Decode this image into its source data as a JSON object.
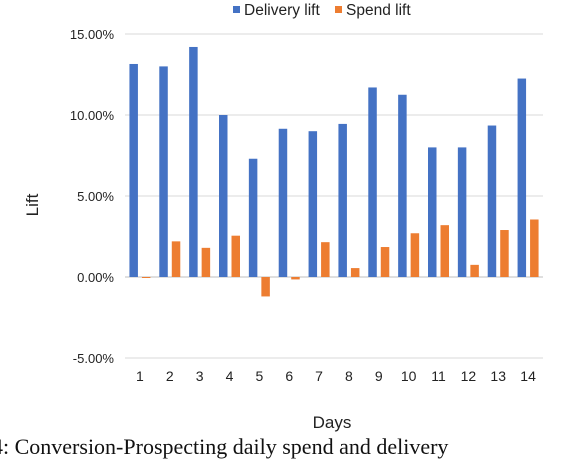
{
  "chart_data": {
    "type": "bar",
    "categories": [
      "1",
      "2",
      "3",
      "4",
      "5",
      "6",
      "7",
      "8",
      "9",
      "10",
      "11",
      "12",
      "13",
      "14"
    ],
    "series": [
      {
        "name": "Delivery lift",
        "color": "#4472c4",
        "values": [
          13.15,
          13.0,
          14.2,
          10.0,
          7.3,
          9.15,
          9.0,
          9.45,
          11.7,
          11.25,
          8.0,
          8.0,
          9.35,
          12.25
        ]
      },
      {
        "name": "Spend lift",
        "color": "#ed7d31",
        "values": [
          -0.05,
          2.2,
          1.8,
          2.55,
          -1.2,
          -0.15,
          2.15,
          0.55,
          1.85,
          2.7,
          3.2,
          0.75,
          2.9,
          3.55
        ]
      }
    ],
    "yticks": [
      "15.00%",
      "10.00%",
      "5.00%",
      "0.00%",
      "-5.00%"
    ],
    "ytick_values": [
      15,
      10,
      5,
      0,
      -5
    ],
    "ylim": [
      -5,
      15
    ],
    "xlabel": "Days",
    "ylabel": "Lift",
    "legend_position": "top",
    "grid": true
  },
  "caption": "4: Conversion-Prospecting daily spend and delivery"
}
